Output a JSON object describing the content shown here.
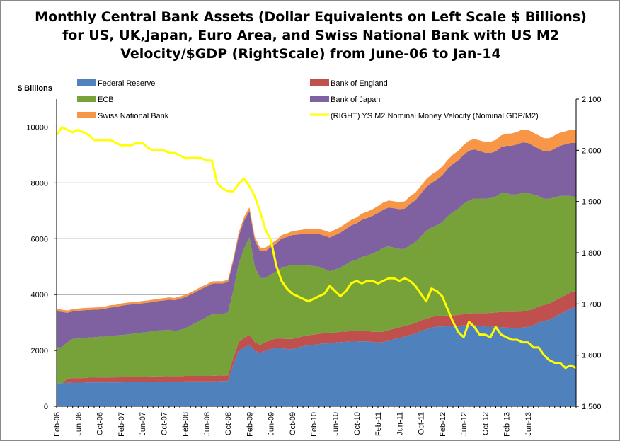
{
  "chart_data": {
    "type": "area",
    "title_lines": [
      "Monthly Central Bank Assets (Dollar Equivalents on Left Scale $ Billions)",
      "for US, UK,Japan, Euro Area, and Swiss National Bank with US M2",
      "Velocity/$GDP  (RightScale)  from June-06 to Jan-14"
    ],
    "left_axis": {
      "unit_label": "$ Billions",
      "min": 0,
      "max": 11000,
      "ticks": [
        0,
        2000,
        4000,
        6000,
        8000,
        10000
      ],
      "tick_labels": [
        "0",
        "2000",
        "4000",
        "6000",
        "8000",
        "10000"
      ]
    },
    "right_axis": {
      "min": 1.5,
      "max": 2.1,
      "ticks": [
        1.5,
        1.6,
        1.7,
        1.8,
        1.9,
        2.0,
        2.1
      ],
      "tick_labels": [
        "1.500",
        "1.600",
        "1.700",
        "1.800",
        "1.900",
        "2.000",
        "2.100"
      ]
    },
    "x_start": "Feb-06",
    "x_tick_labels": [
      "Feb-06",
      "Jun-06",
      "Oct-06",
      "Feb-07",
      "Jun-07",
      "Oct-07",
      "Feb-08",
      "Jun-08",
      "Oct-08",
      "Feb-09",
      "Jun-09",
      "Oct-09",
      "Feb-10",
      "Jun-10",
      "Oct-10",
      "Feb-11",
      "Jun-11",
      "Oct-11",
      "Feb-12",
      "Jun-12",
      "Oct-12",
      "Feb-13",
      "Jun-13"
    ],
    "grid": "horizontal",
    "legend_position": "top",
    "stack_order": [
      "Federal Reserve",
      "Bank of England",
      "ECB",
      "Bank of Japan",
      "Swiss National Bank"
    ],
    "series": [
      {
        "name": "Federal Reserve",
        "color": "#4f81bd",
        "axis": "left",
        "values": [
          830,
          830,
          840,
          850,
          850,
          850,
          860,
          860,
          860,
          860,
          860,
          860,
          860,
          870,
          870,
          870,
          870,
          870,
          880,
          880,
          880,
          880,
          880,
          880,
          890,
          890,
          890,
          890,
          890,
          890,
          900,
          910,
          910,
          1500,
          2000,
          2100,
          2200,
          2000,
          1900,
          2000,
          2050,
          2100,
          2080,
          2050,
          2050,
          2100,
          2150,
          2180,
          2200,
          2230,
          2250,
          2260,
          2280,
          2300,
          2310,
          2320,
          2320,
          2330,
          2330,
          2300,
          2290,
          2300,
          2350,
          2400,
          2450,
          2500,
          2550,
          2600,
          2700,
          2750,
          2820,
          2850,
          2860,
          2870,
          2880,
          2880,
          2900,
          2900,
          2900,
          2880,
          2850,
          2850,
          2840,
          2840,
          2820,
          2800,
          2800,
          2820,
          2850,
          2900,
          3000,
          3050,
          3100,
          3200,
          3300,
          3400,
          3500,
          3550
        ]
      },
      {
        "name": "Bank of England",
        "color": "#c0504d",
        "axis": "left",
        "values": [
          0,
          0,
          150,
          160,
          160,
          160,
          165,
          165,
          170,
          170,
          175,
          175,
          180,
          180,
          185,
          185,
          190,
          190,
          190,
          195,
          195,
          200,
          200,
          200,
          200,
          200,
          200,
          200,
          200,
          200,
          200,
          200,
          200,
          250,
          300,
          350,
          350,
          300,
          300,
          300,
          320,
          330,
          350,
          360,
          360,
          360,
          360,
          360,
          370,
          370,
          370,
          370,
          370,
          370,
          370,
          370,
          370,
          370,
          370,
          370,
          370,
          370,
          380,
          380,
          380,
          380,
          380,
          380,
          380,
          380,
          380,
          380,
          380,
          380,
          380,
          390,
          400,
          420,
          440,
          460,
          480,
          500,
          520,
          540,
          560,
          580,
          580,
          580,
          580,
          580,
          580,
          580,
          580,
          580,
          580,
          580,
          580,
          580
        ]
      },
      {
        "name": "ECB",
        "color": "#77a23a",
        "axis": "left",
        "values": [
          1280,
          1290,
          1300,
          1400,
          1420,
          1430,
          1440,
          1450,
          1460,
          1470,
          1490,
          1500,
          1510,
          1520,
          1540,
          1560,
          1580,
          1600,
          1620,
          1640,
          1650,
          1660,
          1620,
          1650,
          1700,
          1800,
          1900,
          2000,
          2100,
          2200,
          2200,
          2200,
          2250,
          2400,
          2800,
          3200,
          3500,
          2700,
          2400,
          2300,
          2350,
          2400,
          2550,
          2600,
          2650,
          2600,
          2550,
          2500,
          2450,
          2400,
          2300,
          2200,
          2250,
          2300,
          2400,
          2500,
          2550,
          2650,
          2700,
          2800,
          2900,
          3000,
          3000,
          2900,
          2800,
          2750,
          2850,
          2900,
          3000,
          3150,
          3200,
          3250,
          3350,
          3550,
          3700,
          3800,
          3950,
          4050,
          4100,
          4100,
          4100,
          4100,
          4150,
          4250,
          4250,
          4200,
          4200,
          4250,
          4200,
          4100,
          3950,
          3800,
          3750,
          3700,
          3650,
          3550,
          3450,
          3350
        ]
      },
      {
        "name": "Bank of Japan",
        "color": "#7f60a1",
        "axis": "left",
        "values": [
          1300,
          1260,
          1060,
          990,
          990,
          1000,
          985,
          985,
          980,
          990,
          1015,
          1020,
          1050,
          1060,
          1055,
          1050,
          1050,
          1050,
          1050,
          1055,
          1065,
          1080,
          1100,
          1120,
          1120,
          1110,
          1110,
          1110,
          1100,
          1100,
          1100,
          1090,
          1090,
          1050,
          1000,
          1000,
          950,
          950,
          950,
          960,
          980,
          1000,
          1030,
          1050,
          1070,
          1090,
          1110,
          1130,
          1150,
          1170,
          1190,
          1210,
          1230,
          1250,
          1270,
          1290,
          1310,
          1330,
          1340,
          1350,
          1360,
          1370,
          1390,
          1410,
          1430,
          1450,
          1470,
          1500,
          1530,
          1560,
          1600,
          1640,
          1680,
          1700,
          1720,
          1740,
          1760,
          1780,
          1760,
          1700,
          1650,
          1620,
          1620,
          1650,
          1700,
          1750,
          1800,
          1800,
          1800,
          1750,
          1700,
          1700,
          1700,
          1750,
          1800,
          1850,
          1900,
          1950
        ]
      },
      {
        "name": "Swiss National Bank",
        "color": "#f79646",
        "axis": "left",
        "values": [
          80,
          80,
          80,
          80,
          80,
          80,
          80,
          80,
          80,
          80,
          80,
          80,
          80,
          80,
          80,
          80,
          80,
          80,
          80,
          80,
          80,
          80,
          80,
          80,
          80,
          80,
          80,
          80,
          80,
          80,
          80,
          80,
          80,
          100,
          120,
          130,
          130,
          120,
          120,
          120,
          120,
          120,
          120,
          130,
          140,
          150,
          160,
          170,
          180,
          180,
          190,
          190,
          200,
          200,
          200,
          200,
          210,
          220,
          230,
          240,
          250,
          260,
          250,
          250,
          250,
          260,
          270,
          270,
          280,
          290,
          300,
          300,
          310,
          320,
          330,
          340,
          350,
          360,
          370,
          380,
          390,
          400,
          410,
          420,
          430,
          440,
          450,
          460,
          470,
          470,
          470,
          470,
          470,
          470,
          470,
          470,
          470,
          470
        ]
      },
      {
        "name": "(RIGHT) YS M2 Nominal Money Velocity (Nominal GDP/M2)",
        "color": "#ffff00",
        "axis": "right",
        "values": [
          2.03,
          2.045,
          2.04,
          2.035,
          2.04,
          2.035,
          2.03,
          2.02,
          2.02,
          2.02,
          2.02,
          2.015,
          2.01,
          2.01,
          2.01,
          2.015,
          2.015,
          2.005,
          2.0,
          2.0,
          2.0,
          1.995,
          1.995,
          1.99,
          1.985,
          1.985,
          1.985,
          1.985,
          1.98,
          1.98,
          1.935,
          1.925,
          1.92,
          1.92,
          1.935,
          1.945,
          1.93,
          1.91,
          1.88,
          1.845,
          1.825,
          1.775,
          1.745,
          1.73,
          1.72,
          1.715,
          1.71,
          1.705,
          1.71,
          1.715,
          1.72,
          1.735,
          1.725,
          1.715,
          1.725,
          1.74,
          1.745,
          1.74,
          1.745,
          1.745,
          1.74,
          1.745,
          1.75,
          1.75,
          1.745,
          1.75,
          1.745,
          1.735,
          1.72,
          1.705,
          1.73,
          1.725,
          1.715,
          1.69,
          1.665,
          1.645,
          1.635,
          1.665,
          1.655,
          1.64,
          1.64,
          1.635,
          1.655,
          1.64,
          1.635,
          1.63,
          1.63,
          1.625,
          1.625,
          1.615,
          1.615,
          1.6,
          1.59,
          1.585,
          1.585,
          1.575,
          1.58,
          1.575
        ]
      }
    ]
  }
}
